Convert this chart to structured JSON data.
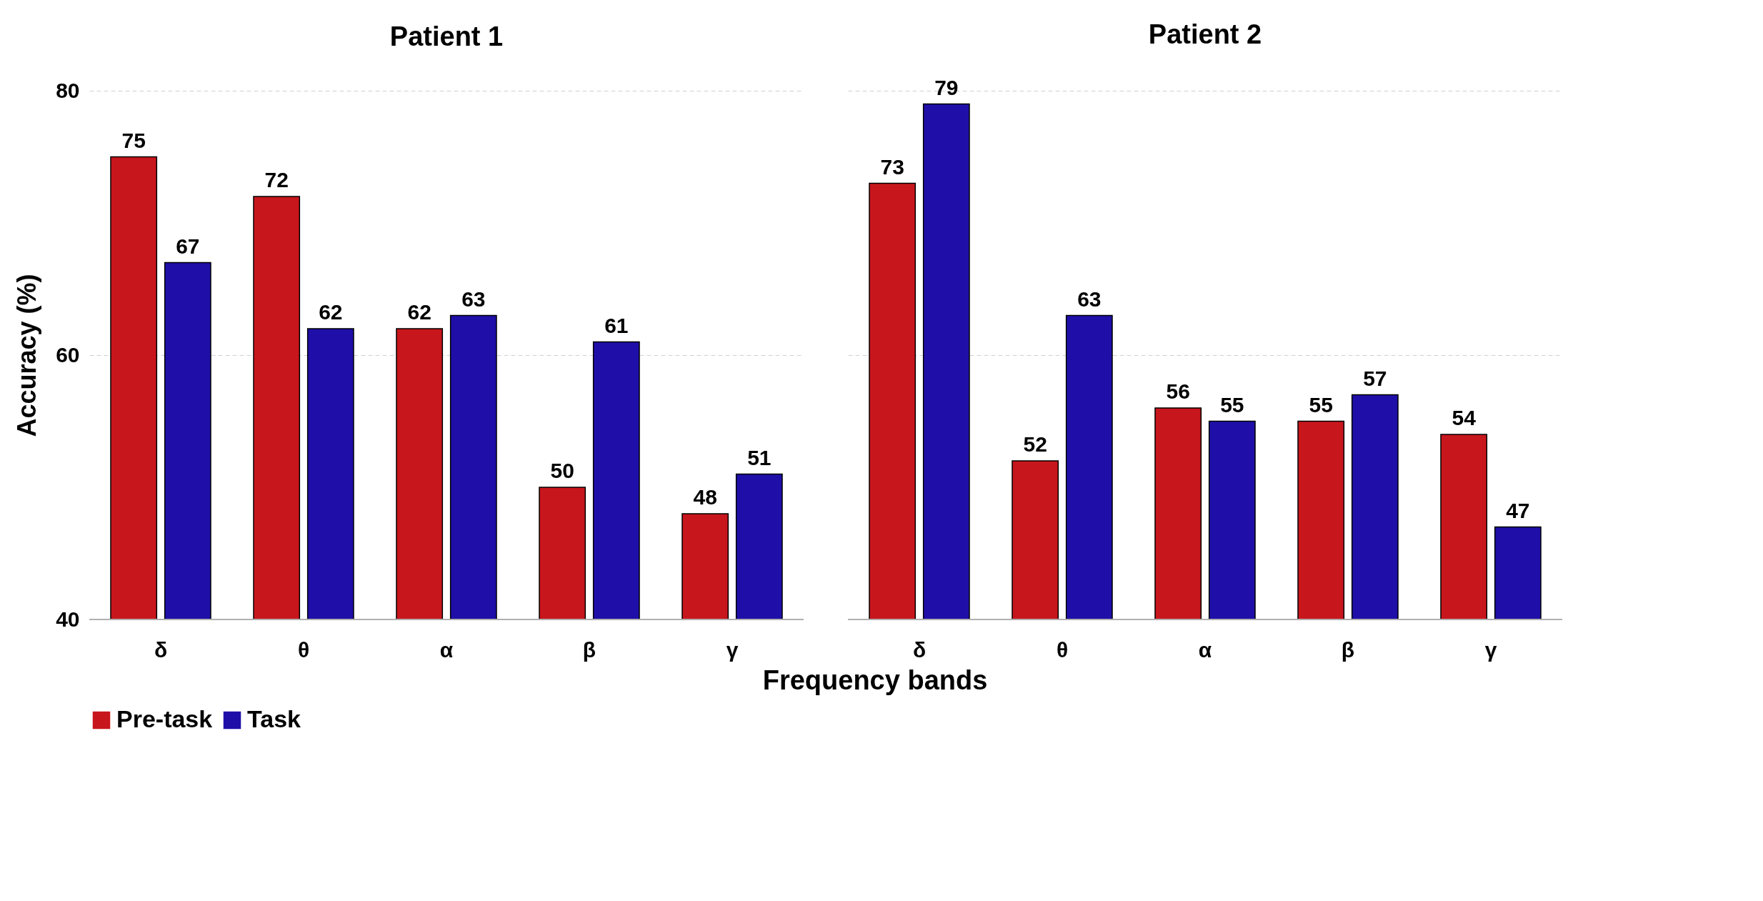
{
  "chart_data": [
    {
      "type": "bar",
      "title": "Patient 1",
      "ylabel": "Accuracy (%)",
      "xlabel": "Frequency bands",
      "categories": [
        "δ",
        "θ",
        "α",
        "β",
        "γ"
      ],
      "series": [
        {
          "name": "Pre-task",
          "color": "#c8161d",
          "values": [
            75,
            72,
            62,
            50,
            48
          ]
        },
        {
          "name": "Task",
          "color": "#1f0fa8",
          "values": [
            67,
            62,
            63,
            61,
            51
          ]
        }
      ],
      "ylim": [
        40,
        80
      ],
      "yticks": [
        40,
        60,
        80
      ],
      "grid": "y",
      "data_labels": true,
      "legend": "bottom"
    },
    {
      "type": "bar",
      "title": "Patient 2",
      "categories": [
        "δ",
        "θ",
        "α",
        "β",
        "γ"
      ],
      "series": [
        {
          "name": "Pre-task",
          "color": "#c8161d",
          "values": [
            73,
            52,
            56,
            55,
            54
          ]
        },
        {
          "name": "Task",
          "color": "#1f0fa8",
          "values": [
            79,
            63,
            55,
            57,
            47
          ]
        }
      ],
      "ylim": [
        40,
        80
      ],
      "yticks": [
        40,
        60,
        80
      ],
      "grid": "y",
      "data_labels": true,
      "legend": "bottom",
      "tick_labels": "x"
    }
  ]
}
